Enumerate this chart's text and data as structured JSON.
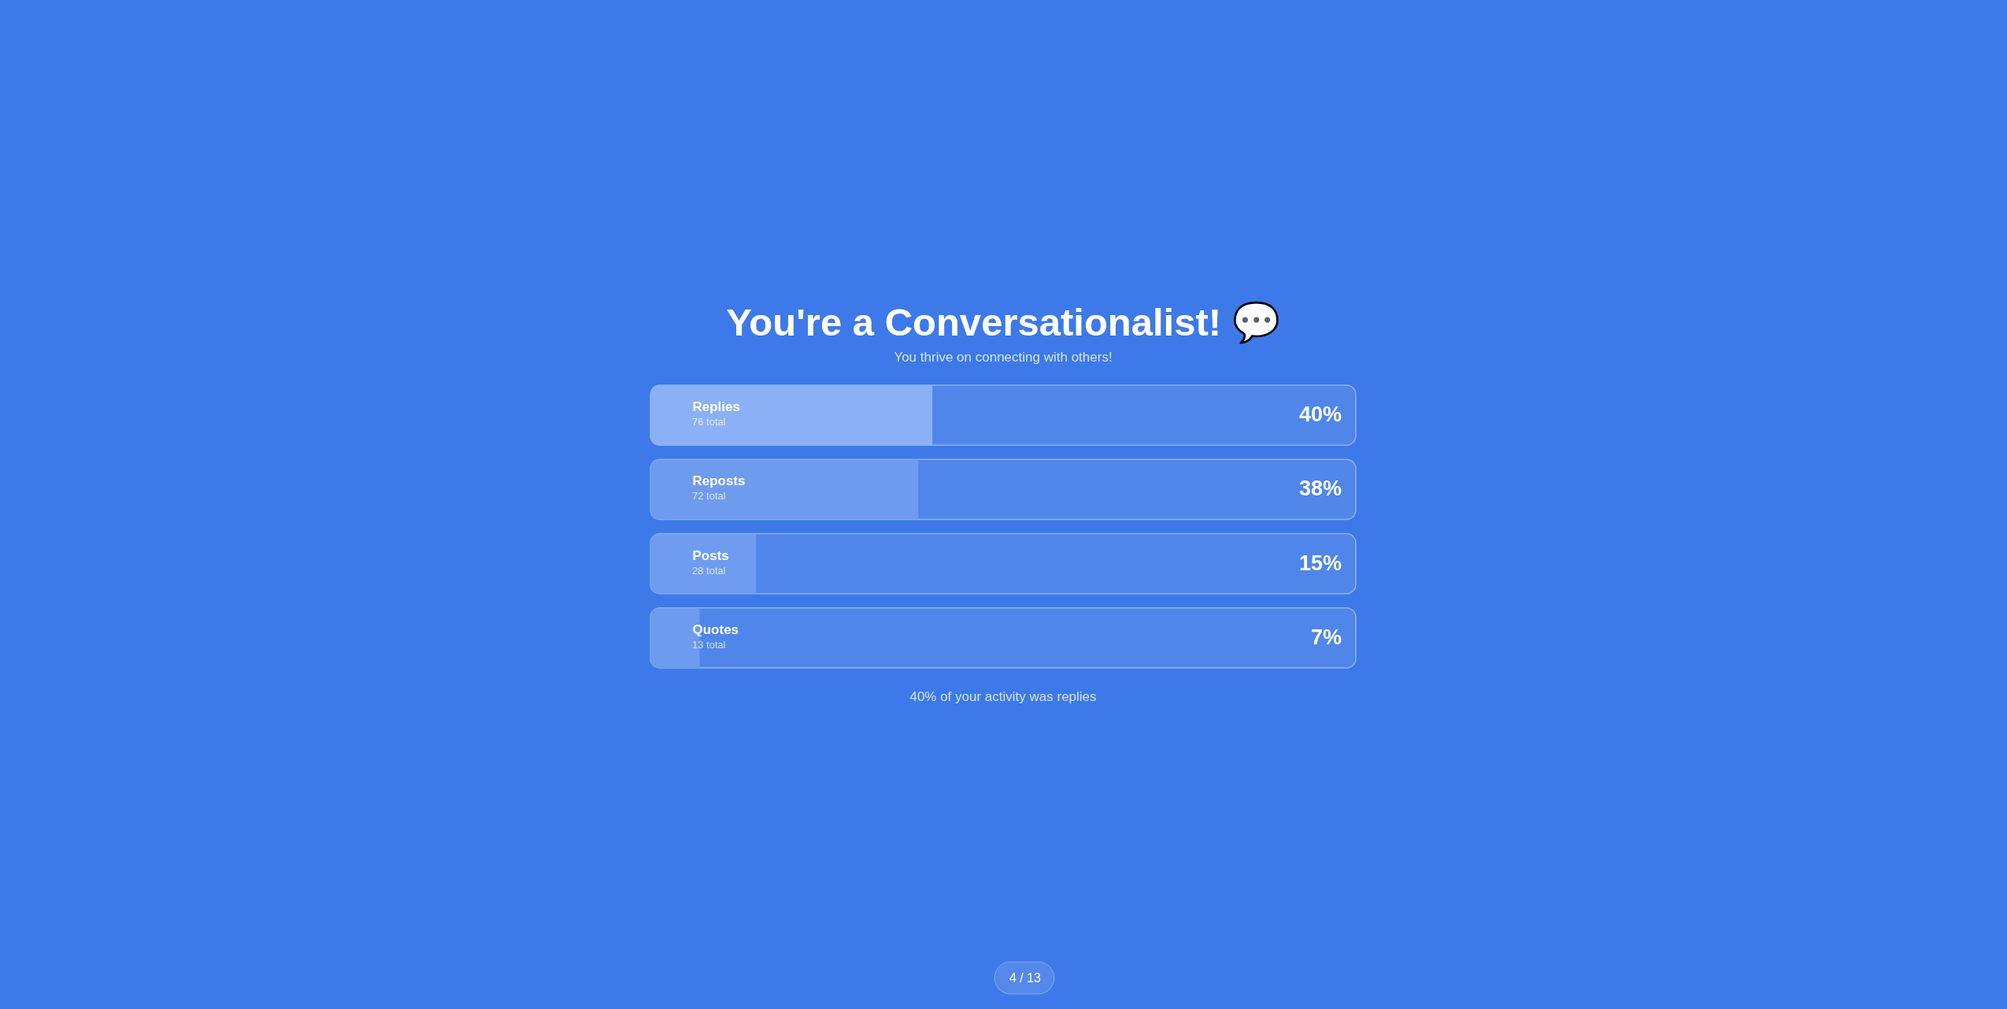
{
  "chart_data": {
    "type": "bar",
    "orientation": "horizontal",
    "title": "You're a Conversationalist! 💬",
    "subtitle": "You thrive on connecting with others!",
    "categories": [
      "Replies",
      "Reposts",
      "Posts",
      "Quotes"
    ],
    "values": [
      40,
      38,
      15,
      7
    ],
    "colors": [
      "#8bb0f5",
      "#6f9bef",
      "#6f9cef",
      "#6e9bee"
    ],
    "value_labels": [
      "40%",
      "38%",
      "15%",
      "7%"
    ],
    "xlim": [
      0,
      100
    ],
    "tick_labels": "y",
    "annotations": [
      "76 total",
      "72 total",
      "28 total",
      "13 total",
      "40% of your activity was replies",
      "4 / 13"
    ]
  }
}
